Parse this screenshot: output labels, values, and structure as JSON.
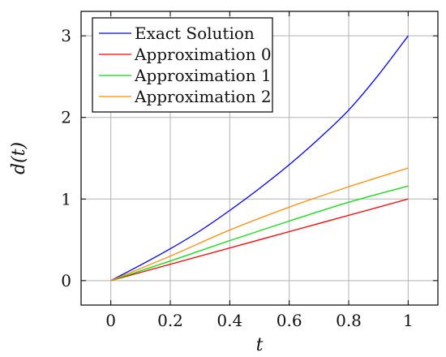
{
  "chart_data": {
    "type": "line",
    "xlabel": "t",
    "ylabel": "d(t)",
    "xlim": [
      -0.1,
      1.1
    ],
    "ylim": [
      -0.3,
      3.3
    ],
    "xticks": [
      0,
      0.2,
      0.4,
      0.6,
      0.8,
      1
    ],
    "xtick_labels": [
      "0",
      "0.2",
      "0.4",
      "0.6",
      "0.8",
      "1"
    ],
    "yticks": [
      0,
      1,
      2,
      3
    ],
    "ytick_labels": [
      "0",
      "1",
      "2",
      "3"
    ],
    "grid": true,
    "legend_position": "top-left",
    "series": [
      {
        "name": "Exact Solution",
        "color": "#0000ff",
        "x": [
          0,
          0.1,
          0.2,
          0.3,
          0.4,
          0.5,
          0.6,
          0.7,
          0.8,
          0.9,
          1.0
        ],
        "y": [
          0,
          0.19,
          0.39,
          0.61,
          0.86,
          1.13,
          1.42,
          1.74,
          2.09,
          2.52,
          3.0
        ]
      },
      {
        "name": "Approximation 0",
        "color": "#ff0000",
        "x": [
          0,
          0.2,
          0.4,
          0.6,
          0.8,
          1.0
        ],
        "y": [
          0,
          0.2,
          0.4,
          0.6,
          0.8,
          1.0
        ]
      },
      {
        "name": "Approximation 1",
        "color": "#00e000",
        "x": [
          0,
          0.2,
          0.4,
          0.6,
          0.8,
          1.0
        ],
        "y": [
          0,
          0.24,
          0.49,
          0.73,
          0.96,
          1.16
        ]
      },
      {
        "name": "Approximation 2",
        "color": "#ff8c00",
        "x": [
          0,
          0.2,
          0.4,
          0.6,
          0.8,
          1.0
        ],
        "y": [
          0,
          0.3,
          0.62,
          0.9,
          1.15,
          1.38
        ]
      }
    ]
  }
}
